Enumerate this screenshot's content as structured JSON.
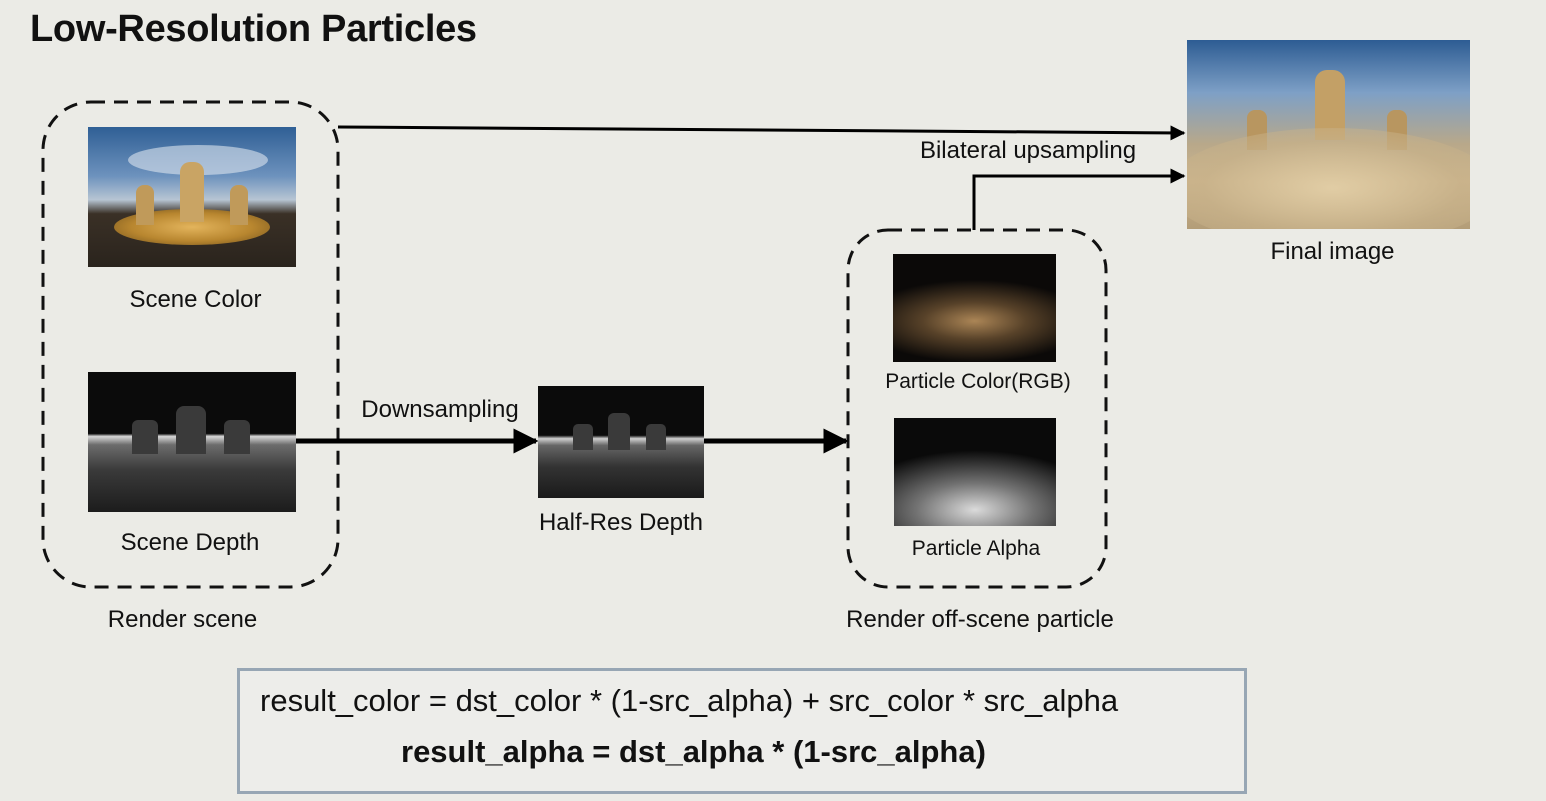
{
  "title": "Low-Resolution Particles",
  "nodes": {
    "scene_color": "Scene Color",
    "scene_depth": "Scene Depth",
    "half_res_depth": "Half-Res Depth",
    "particle_color": "Particle Color(RGB)",
    "particle_alpha": "Particle Alpha",
    "final_image": "Final image"
  },
  "groups": {
    "render_scene": "Render scene",
    "render_off_scene_particle": "Render off-scene particle"
  },
  "edges": {
    "downsampling": "Downsampling",
    "bilateral_upsampling": "Bilateral upsampling"
  },
  "formula": {
    "line1": "result_color = dst_color * (1-src_alpha) + src_color * src_alpha",
    "line2": "result_alpha = dst_alpha * (1-src_alpha)"
  }
}
